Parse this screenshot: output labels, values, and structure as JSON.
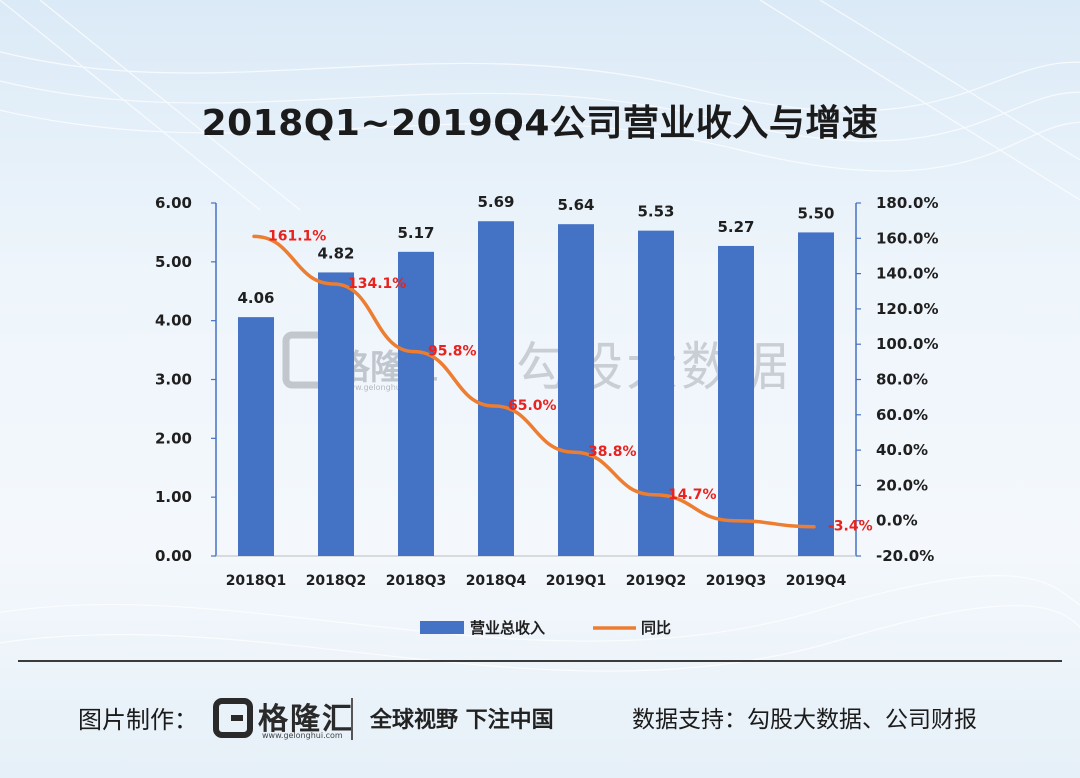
{
  "title": "2018Q1~2019Q4公司营业收入与增速",
  "chart_data": {
    "type": "bar",
    "categories": [
      "2018Q1",
      "2018Q2",
      "2018Q3",
      "2018Q4",
      "2019Q1",
      "2019Q2",
      "2019Q3",
      "2019Q4"
    ],
    "series": [
      {
        "name": "营业总收入",
        "type": "bar",
        "axis": "left",
        "color": "#4472c4",
        "values": [
          4.06,
          4.82,
          5.17,
          5.69,
          5.64,
          5.53,
          5.27,
          5.5
        ],
        "labels": [
          "4.06",
          "4.82",
          "5.17",
          "5.69",
          "5.64",
          "5.53",
          "5.27",
          "5.50"
        ]
      },
      {
        "name": "同比",
        "type": "line",
        "axis": "right",
        "color": "#ed7d31",
        "values": [
          161.1,
          134.1,
          95.8,
          65.0,
          38.8,
          14.7,
          0.0,
          -3.4
        ],
        "labels": [
          "161.1%",
          "134.1%",
          "95.8%",
          "65.0%",
          "38.8%",
          "14.7%",
          "",
          "-3.4%"
        ],
        "label_color": "#e8231f"
      }
    ],
    "left_axis": {
      "ylim": [
        0,
        6
      ],
      "ticks": [
        0,
        1,
        2,
        3,
        4,
        5,
        6
      ],
      "tick_labels": [
        "0.00",
        "1.00",
        "2.00",
        "3.00",
        "4.00",
        "5.00",
        "6.00"
      ]
    },
    "right_axis": {
      "ylim": [
        -20,
        180
      ],
      "ticks": [
        -20,
        0,
        20,
        40,
        60,
        80,
        100,
        120,
        140,
        160,
        180
      ],
      "tick_labels": [
        "-20.0%",
        "0.0%",
        "20.0%",
        "40.0%",
        "60.0%",
        "80.0%",
        "100.0%",
        "120.0%",
        "140.0%",
        "160.0%",
        "180.0%"
      ]
    },
    "legend": [
      "营业总收入",
      "同比"
    ],
    "legend_position": "bottom"
  },
  "watermark": {
    "logo_name": "格隆汇",
    "logo_url": "www.gelonghui.com",
    "text": "勾股大数据"
  },
  "footer": {
    "credit_label": "图片制作：",
    "logo_name": "格隆汇",
    "logo_url": "www.gelonghui.com",
    "slogan": "全球视野 下注中国",
    "source": "数据支持：勾股大数据、公司财报"
  },
  "colors": {
    "bar": "#4472c4",
    "line": "#ed7d31",
    "pct_label": "#e8231f",
    "axis": "#4472c4"
  }
}
